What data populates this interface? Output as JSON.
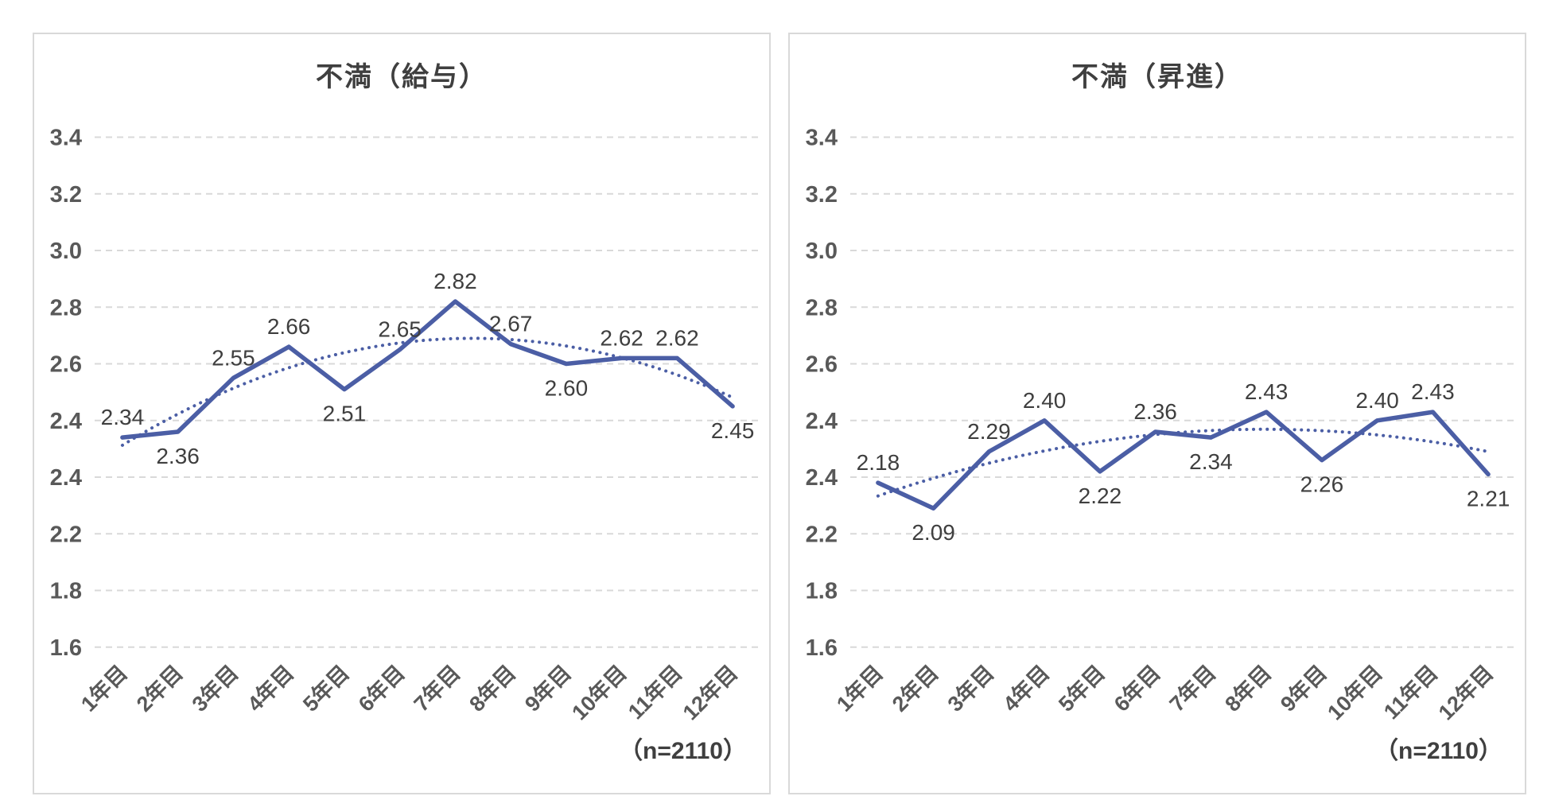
{
  "colors": {
    "series_line": "#4B5EA5",
    "trendline": "#4B5EA5",
    "gridline": "#D9D9D9",
    "axis_text": "#595959",
    "data_label_text": "#3F3F3F",
    "title_text": "#3F3F3F",
    "panel_border": "#D9D9D9",
    "background": "#FFFFFF"
  },
  "chart_data": [
    {
      "type": "line",
      "title": "不満（給与）",
      "note": "（n=2110）",
      "xlabel": "",
      "ylabel": "",
      "legend": "none",
      "grid": "dashed-horizontal",
      "ylim": [
        1.6,
        3.4
      ],
      "y_tick_labels": [
        "3.4",
        "3.2",
        "3.0",
        "2.8",
        "2.6",
        "2.4",
        "2.4",
        "2.2",
        "1.8",
        "1.6"
      ],
      "categories": [
        "1年目",
        "2年目",
        "3年目",
        "4年目",
        "5年目",
        "6年目",
        "7年目",
        "8年目",
        "9年目",
        "10年目",
        "11年目",
        "12年目"
      ],
      "series": [
        {
          "name": "不満（給与）",
          "values": [
            2.34,
            2.36,
            2.55,
            2.66,
            2.51,
            2.65,
            2.82,
            2.67,
            2.6,
            2.62,
            2.62,
            2.45
          ],
          "point_labels": [
            "2.34",
            "2.36",
            "2.55",
            "2.66",
            "2.51",
            "2.65",
            "2.82",
            "2.67",
            "2.60",
            "2.62",
            "2.62",
            "2.45"
          ],
          "label_placement": [
            "above",
            "below",
            "above",
            "above",
            "below",
            "above",
            "above",
            "above",
            "below",
            "above",
            "above",
            "below"
          ]
        }
      ],
      "trendline": {
        "type": "polynomial",
        "order": 2,
        "style": "dotted"
      }
    },
    {
      "type": "line",
      "title": "不満（昇進）",
      "note": "（n=2110）",
      "xlabel": "",
      "ylabel": "",
      "legend": "none",
      "grid": "dashed-horizontal",
      "ylim": [
        1.6,
        3.4
      ],
      "y_tick_labels": [
        "3.4",
        "3.2",
        "3.0",
        "2.8",
        "2.6",
        "2.4",
        "2.4",
        "2.2",
        "1.8",
        "1.6"
      ],
      "categories": [
        "1年目",
        "2年目",
        "3年目",
        "4年目",
        "5年目",
        "6年目",
        "7年目",
        "8年目",
        "9年目",
        "10年目",
        "11年目",
        "12年目"
      ],
      "series": [
        {
          "name": "不満（昇進）",
          "values": [
            2.18,
            2.09,
            2.29,
            2.4,
            2.22,
            2.36,
            2.34,
            2.43,
            2.26,
            2.4,
            2.43,
            2.21
          ],
          "point_labels": [
            "2.18",
            "2.09",
            "2.29",
            "2.40",
            "2.22",
            "2.36",
            "2.34",
            "2.43",
            "2.26",
            "2.40",
            "2.43",
            "2.21"
          ],
          "label_placement": [
            "above",
            "below",
            "above",
            "above",
            "below",
            "above",
            "below",
            "above",
            "below",
            "above",
            "above",
            "below"
          ]
        }
      ],
      "trendline": {
        "type": "polynomial",
        "order": 2,
        "style": "dotted"
      }
    }
  ]
}
